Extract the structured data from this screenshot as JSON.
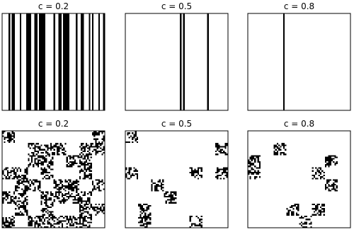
{
  "chart_data": [
    {
      "type": "image",
      "title": "c = 0.2"
    },
    {
      "type": "image",
      "title": "c = 0.5"
    },
    {
      "type": "image",
      "title": "c = 0.8"
    },
    {
      "type": "image",
      "title": "c = 0.2"
    },
    {
      "type": "image",
      "title": "c = 0.5"
    },
    {
      "type": "image",
      "title": "c = 0.8"
    }
  ]
}
